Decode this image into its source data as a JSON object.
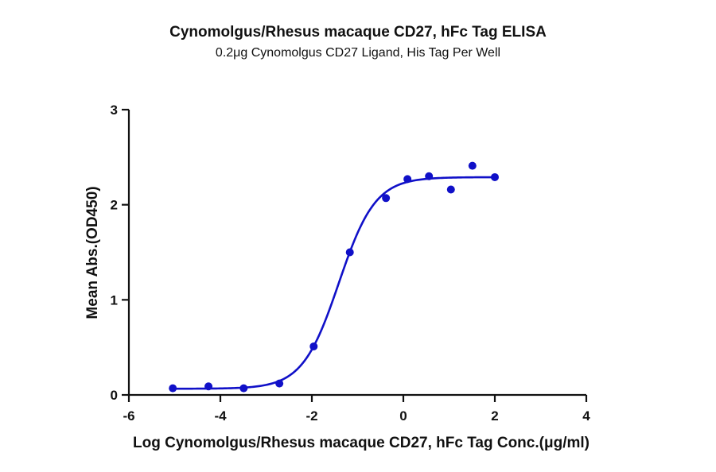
{
  "chart_data": {
    "type": "scatter",
    "title": "Cynomolgus/Rhesus macaque CD27, hFc Tag ELISA",
    "subtitle": "0.2μg Cynomolgus CD27 Ligand, His Tag Per Well",
    "xlabel": "Log Cynomolgus/Rhesus macaque CD27, hFc Tag Conc.(μg/ml)",
    "ylabel": "Mean Abs.(OD450)",
    "xlim": [
      -6,
      4
    ],
    "ylim": [
      0,
      3
    ],
    "xticks": [
      -6,
      -4,
      -2,
      0,
      2,
      4
    ],
    "yticks": [
      0,
      1,
      2,
      3
    ],
    "grid": false,
    "legend": null,
    "series": [
      {
        "name": "Mean Abs.(OD450)",
        "color": "#1010c8",
        "x": [
          -5.04,
          -4.26,
          -3.49,
          -2.71,
          -1.96,
          -1.17,
          -0.38,
          0.09,
          0.56,
          1.04,
          1.51,
          2.0
        ],
        "y": [
          0.07,
          0.09,
          0.07,
          0.12,
          0.51,
          1.5,
          2.07,
          2.27,
          2.3,
          2.16,
          2.41,
          2.29
        ]
      }
    ],
    "fit": {
      "model": "4PL",
      "bottom": 0.065,
      "top": 2.29,
      "log_ec50": -1.41,
      "hill_slope": 1.09,
      "x_range": [
        -5.04,
        2.0
      ]
    }
  }
}
